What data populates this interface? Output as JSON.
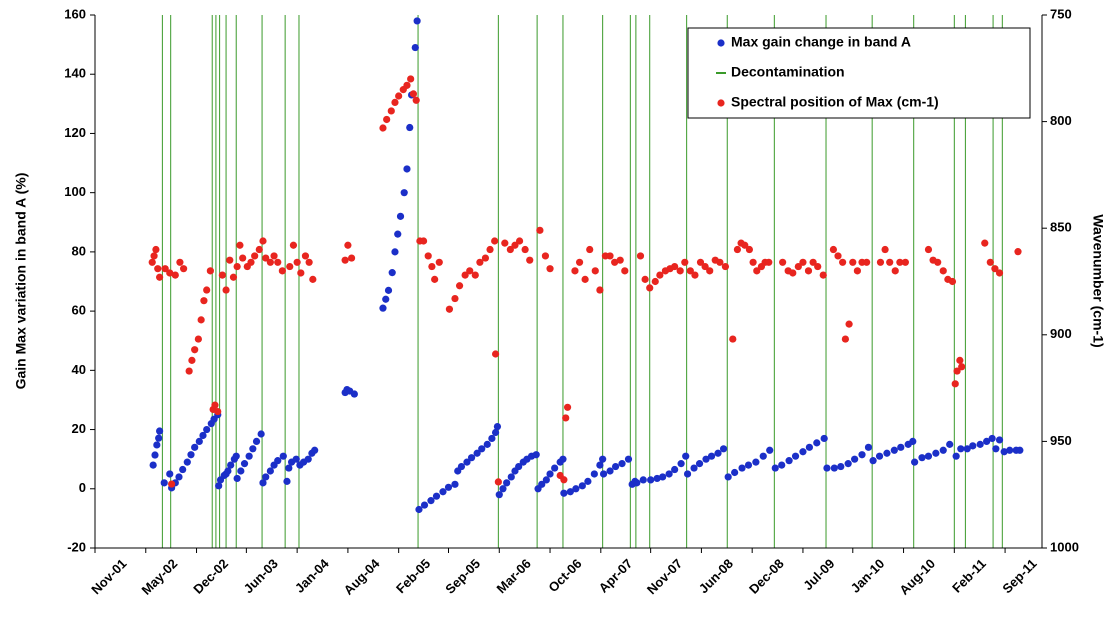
{
  "chart_data": {
    "type": "scatter",
    "ylabel": "Gain Max variation in band A (%)",
    "y2label": "Wavenumber (cm-1)",
    "xlim": [
      2001.83,
      2012.09
    ],
    "xticks": [
      {
        "value": 2001.83,
        "label": "Nov-01"
      },
      {
        "value": 2002.38,
        "label": "May-02"
      },
      {
        "value": 2002.93,
        "label": "Dec-02"
      },
      {
        "value": 2003.47,
        "label": "Jun-03"
      },
      {
        "value": 2004.02,
        "label": "Jan-04"
      },
      {
        "value": 2004.57,
        "label": "Aug-04"
      },
      {
        "value": 2005.12,
        "label": "Feb-05"
      },
      {
        "value": 2005.66,
        "label": "Sep-05"
      },
      {
        "value": 2006.21,
        "label": "Mar-06"
      },
      {
        "value": 2006.76,
        "label": "Oct-06"
      },
      {
        "value": 2007.31,
        "label": "Apr-07"
      },
      {
        "value": 2007.85,
        "label": "Nov-07"
      },
      {
        "value": 2008.4,
        "label": "Jun-08"
      },
      {
        "value": 2008.95,
        "label": "Dec-08"
      },
      {
        "value": 2009.5,
        "label": "Jul-09"
      },
      {
        "value": 2010.04,
        "label": "Jan-10"
      },
      {
        "value": 2010.59,
        "label": "Aug-10"
      },
      {
        "value": 2011.14,
        "label": "Feb-11"
      },
      {
        "value": 2011.69,
        "label": "Sep-11"
      }
    ],
    "ylim": [
      -20,
      160
    ],
    "yticks": [
      -20,
      0,
      20,
      40,
      60,
      80,
      100,
      120,
      140,
      160
    ],
    "y2lim": [
      750,
      1000
    ],
    "y2ticks": [
      750,
      800,
      850,
      900,
      950,
      1000
    ],
    "y2_reversed": true,
    "grid": false,
    "legend": "upper right",
    "series": [
      {
        "name": "Max gain change in band A",
        "color": "#1b2fc8",
        "x": [
          2002.46,
          2002.48,
          2002.5,
          2002.52,
          2002.53,
          2002.58,
          2002.64,
          2002.66,
          2002.7,
          2002.74,
          2002.78,
          2002.83,
          2002.87,
          2002.91,
          2002.96,
          2003.0,
          2003.04,
          2003.09,
          2003.12,
          2003.16,
          2003.17,
          2003.19,
          2003.23,
          2003.25,
          2003.27,
          2003.3,
          2003.34,
          2003.36,
          2003.37,
          2003.41,
          2003.45,
          2003.5,
          2003.54,
          2003.58,
          2003.63,
          2003.65,
          2003.68,
          2003.73,
          2003.77,
          2003.81,
          2003.87,
          2003.91,
          2003.93,
          2003.96,
          2004.01,
          2004.05,
          2004.09,
          2004.14,
          2004.18,
          2004.21,
          2004.54,
          2004.56,
          2004.59,
          2004.64,
          2004.95,
          2004.98,
          2005.01,
          2005.05,
          2005.08,
          2005.11,
          2005.14,
          2005.18,
          2005.21,
          2005.24,
          2005.26,
          2005.3,
          2005.32,
          2005.34,
          2005.4,
          2005.47,
          2005.53,
          2005.6,
          2005.66,
          2005.73,
          2005.76,
          2005.8,
          2005.86,
          2005.91,
          2005.97,
          2006.02,
          2006.08,
          2006.13,
          2006.17,
          2006.19,
          2006.21,
          2006.25,
          2006.29,
          2006.34,
          2006.38,
          2006.42,
          2006.47,
          2006.51,
          2006.56,
          2006.61,
          2006.63,
          2006.67,
          2006.72,
          2006.76,
          2006.81,
          2006.87,
          2006.9,
          2006.91,
          2006.98,
          2007.04,
          2007.11,
          2007.17,
          2007.24,
          2007.3,
          2007.33,
          2007.34,
          2007.41,
          2007.47,
          2007.54,
          2007.61,
          2007.65,
          2007.68,
          2007.7,
          2007.77,
          2007.85,
          2007.92,
          2007.98,
          2008.05,
          2008.11,
          2008.18,
          2008.23,
          2008.25,
          2008.32,
          2008.38,
          2008.45,
          2008.51,
          2008.58,
          2008.64,
          2008.69,
          2008.76,
          2008.84,
          2008.91,
          2008.99,
          2009.07,
          2009.14,
          2009.2,
          2009.27,
          2009.35,
          2009.42,
          2009.5,
          2009.57,
          2009.65,
          2009.73,
          2009.76,
          2009.84,
          2009.91,
          2009.99,
          2010.06,
          2010.14,
          2010.21,
          2010.26,
          2010.33,
          2010.41,
          2010.49,
          2010.56,
          2010.64,
          2010.69,
          2010.71,
          2010.79,
          2010.86,
          2010.94,
          2011.02,
          2011.09,
          2011.16,
          2011.21,
          2011.28,
          2011.34,
          2011.42,
          2011.49,
          2011.55,
          2011.59,
          2011.63,
          2011.68,
          2011.74,
          2011.81,
          2011.85
        ],
        "values": [
          8,
          11.4,
          14.8,
          17.1,
          19.5,
          2,
          5,
          0.3,
          2,
          4,
          6.5,
          9,
          11.5,
          14,
          16,
          18,
          20,
          22,
          23.5,
          25,
          1,
          3,
          4.5,
          5,
          6,
          8,
          10,
          11,
          3.5,
          6,
          8.5,
          11,
          13.5,
          16,
          18.5,
          2,
          4,
          6,
          8,
          9.5,
          11,
          2.5,
          7,
          9,
          10,
          8,
          9,
          10,
          12,
          13,
          32.5,
          33.5,
          33,
          32,
          61,
          64,
          67,
          73,
          80,
          86,
          92,
          100,
          108,
          122,
          133,
          149,
          158,
          -7,
          -5.5,
          -4,
          -2.5,
          -1,
          0.5,
          1.5,
          6,
          7.5,
          9,
          10.5,
          12,
          13.5,
          15,
          17,
          19,
          21,
          -2,
          0,
          2,
          4,
          6,
          7.5,
          9,
          10,
          11,
          11.5,
          0,
          1.5,
          3,
          5,
          7,
          9,
          10,
          -1.5,
          -1,
          0,
          1,
          2.5,
          5,
          8,
          10,
          5,
          6,
          7.5,
          8.5,
          10,
          1.5,
          2.5,
          2,
          3,
          3,
          3.5,
          4,
          5,
          6.5,
          8.5,
          11,
          5,
          7,
          8.5,
          10,
          11,
          12,
          13.5,
          4,
          5.5,
          7,
          8,
          9,
          11,
          13,
          7,
          8,
          9.5,
          11,
          12.5,
          14,
          15.5,
          17,
          7,
          7,
          7.5,
          8.5,
          10,
          11.5,
          14,
          9.5,
          11,
          12,
          13,
          14,
          15,
          16,
          9,
          10.5,
          11,
          12,
          13,
          15,
          11,
          13.5,
          13.5,
          14.5,
          15,
          16,
          17,
          13.5,
          16.5,
          12.5,
          13,
          13,
          13
        ]
      },
      {
        "name": "Decontamination",
        "color": "#3a9a2a",
        "x": [
          2002.56,
          2002.65,
          2003.1,
          2003.14,
          2003.18,
          2003.25,
          2003.36,
          2003.64,
          2003.89,
          2004.04,
          2005.33,
          2006.2,
          2006.62,
          2006.9,
          2007.33,
          2007.63,
          2007.69,
          2007.84,
          2008.24,
          2008.68,
          2009.19,
          2009.75,
          2010.25,
          2010.7,
          2011.14,
          2011.26,
          2011.56,
          2011.66
        ]
      },
      {
        "name": "Spectral position of Max (cm-1)",
        "color": "#e8251f",
        "axis": "y2",
        "x": [
          2002.45,
          2002.47,
          2002.49,
          2002.51,
          2002.53,
          2002.59,
          2002.64,
          2002.66,
          2002.7,
          2002.75,
          2002.79,
          2002.85,
          2002.88,
          2002.91,
          2002.95,
          2002.98,
          2003.01,
          2003.04,
          2003.08,
          2003.11,
          2003.13,
          2003.16,
          2003.21,
          2003.25,
          2003.29,
          2003.33,
          2003.37,
          2003.4,
          2003.43,
          2003.48,
          2003.52,
          2003.56,
          2003.61,
          2003.65,
          2003.68,
          2003.73,
          2003.77,
          2003.81,
          2003.86,
          2003.94,
          2003.98,
          2004.02,
          2004.06,
          2004.11,
          2004.15,
          2004.19,
          2004.54,
          2004.57,
          2004.61,
          2004.95,
          2004.99,
          2005.04,
          2005.08,
          2005.12,
          2005.17,
          2005.21,
          2005.25,
          2005.28,
          2005.31,
          2005.35,
          2005.39,
          2005.44,
          2005.48,
          2005.51,
          2005.56,
          2005.67,
          2005.73,
          2005.78,
          2005.84,
          2005.89,
          2005.95,
          2006.0,
          2006.06,
          2006.11,
          2006.16,
          2006.17,
          2006.2,
          2006.27,
          2006.33,
          2006.38,
          2006.43,
          2006.49,
          2006.54,
          2006.65,
          2006.71,
          2006.76,
          2006.87,
          2006.91,
          2006.93,
          2006.95,
          2007.03,
          2007.08,
          2007.14,
          2007.19,
          2007.25,
          2007.3,
          2007.36,
          2007.41,
          2007.46,
          2007.52,
          2007.57,
          2007.74,
          2007.79,
          2007.84,
          2007.9,
          2007.95,
          2008.01,
          2008.06,
          2008.11,
          2008.17,
          2008.22,
          2008.28,
          2008.33,
          2008.39,
          2008.44,
          2008.49,
          2008.55,
          2008.6,
          2008.66,
          2008.74,
          2008.79,
          2008.83,
          2008.87,
          2008.92,
          2008.96,
          2009.0,
          2009.05,
          2009.09,
          2009.13,
          2009.28,
          2009.34,
          2009.39,
          2009.45,
          2009.5,
          2009.56,
          2009.61,
          2009.66,
          2009.72,
          2009.83,
          2009.88,
          2009.93,
          2009.96,
          2010.0,
          2010.04,
          2010.09,
          2010.14,
          2010.19,
          2010.34,
          2010.39,
          2010.44,
          2010.5,
          2010.55,
          2010.61,
          2010.86,
          2010.91,
          2010.96,
          2011.02,
          2011.07,
          2011.12,
          2011.15,
          2011.17,
          2011.2,
          2011.22,
          2011.47,
          2011.53,
          2011.58,
          2011.63,
          2011.83
        ],
        "values": [
          866,
          863,
          860,
          869,
          873,
          869,
          871,
          970,
          872,
          866,
          869,
          917,
          912,
          907,
          902,
          893,
          884,
          879,
          870,
          935,
          933,
          936,
          872,
          879,
          865,
          873,
          868,
          858,
          864,
          868,
          866,
          863,
          860,
          856,
          864,
          866,
          863,
          866,
          870,
          868,
          858,
          866,
          871,
          863,
          866,
          874,
          865,
          858,
          864,
          803,
          799,
          795,
          791,
          788,
          785,
          783,
          780,
          787,
          790,
          856,
          856,
          863,
          868,
          874,
          866,
          888,
          883,
          877,
          872,
          870,
          872,
          866,
          864,
          860,
          856,
          909,
          969,
          857,
          860,
          858,
          856,
          860,
          865,
          851,
          863,
          869,
          966,
          968,
          939,
          934,
          870,
          866,
          874,
          860,
          870,
          879,
          863,
          863,
          866,
          865,
          870,
          863,
          874,
          878,
          875,
          872,
          870,
          869,
          868,
          870,
          866,
          870,
          872,
          866,
          868,
          870,
          865,
          866,
          868,
          902,
          860,
          857,
          858,
          860,
          866,
          870,
          868,
          866,
          866,
          866,
          870,
          871,
          868,
          866,
          870,
          866,
          868,
          872,
          860,
          863,
          866,
          902,
          895,
          866,
          870,
          866,
          866,
          866,
          860,
          866,
          870,
          866,
          866,
          860,
          865,
          866,
          870,
          874,
          875,
          923,
          917,
          912,
          915,
          857,
          866,
          869,
          871,
          861
        ]
      }
    ]
  }
}
